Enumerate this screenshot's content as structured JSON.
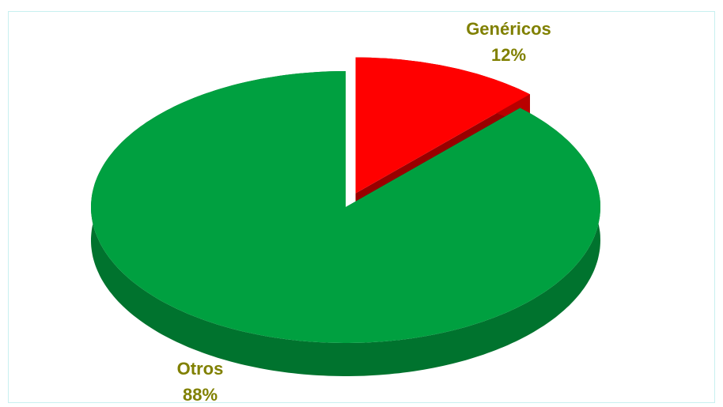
{
  "chart_data": {
    "type": "pie",
    "categories": [
      "Genéricos",
      "Otros"
    ],
    "values": [
      12,
      88
    ],
    "value_labels": [
      "12%",
      "88%"
    ],
    "colors": [
      "#ff0000",
      "#00a040"
    ]
  }
}
